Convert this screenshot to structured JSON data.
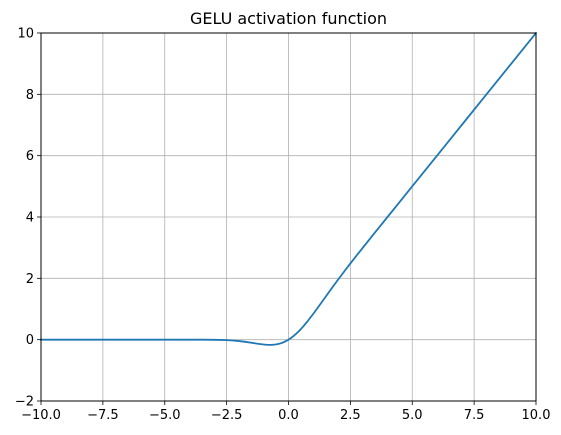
{
  "chart_data": {
    "type": "line",
    "title": "GELU activation function",
    "xlabel": "",
    "ylabel": "",
    "xlim": [
      -10,
      10
    ],
    "ylim": [
      -2,
      10
    ],
    "grid": true,
    "x_ticks": [
      -10,
      -7.5,
      -5,
      -2.5,
      0,
      2.5,
      5,
      7.5,
      10
    ],
    "x_tick_labels": [
      "−10.0",
      "−7.5",
      "−5.0",
      "−2.5",
      "0.0",
      "2.5",
      "5.0",
      "7.5",
      "10.0"
    ],
    "y_ticks": [
      -2,
      0,
      2,
      4,
      6,
      8,
      10
    ],
    "y_tick_labels": [
      "−2",
      "0",
      "2",
      "4",
      "6",
      "8",
      "10"
    ],
    "series": [
      {
        "color": "#1f77b4",
        "x": [
          -10,
          -9,
          -8,
          -7,
          -6,
          -5,
          -4.5,
          -4,
          -3.5,
          -3,
          -2.75,
          -2.5,
          -2.25,
          -2,
          -1.75,
          -1.5,
          -1.25,
          -1,
          -0.9,
          -0.8,
          -0.75,
          -0.7,
          -0.6,
          -0.5,
          -0.4,
          -0.3,
          -0.2,
          -0.1,
          0,
          0.1,
          0.2,
          0.3,
          0.4,
          0.5,
          0.6,
          0.75,
          1,
          1.25,
          1.5,
          1.75,
          2,
          2.25,
          2.5,
          2.75,
          3,
          3.5,
          4,
          4.5,
          5,
          6,
          7,
          8,
          9,
          10
        ],
        "y": [
          0,
          0,
          0,
          0,
          0,
          0,
          0,
          -0.0001,
          -0.0008,
          -0.004,
          -0.0082,
          -0.0155,
          -0.0275,
          -0.0455,
          -0.0702,
          -0.1002,
          -0.132,
          -0.1587,
          -0.1656,
          -0.1695,
          -0.17,
          -0.1695,
          -0.1646,
          -0.1543,
          -0.1379,
          -0.1148,
          -0.0841,
          -0.046,
          0,
          0.054,
          0.1159,
          0.1854,
          0.2621,
          0.3457,
          0.4354,
          0.58,
          0.8413,
          1.118,
          1.3996,
          1.6797,
          1.9545,
          2.2225,
          2.4845,
          2.7418,
          2.996,
          3.4992,
          3.9999,
          4.5,
          5.0,
          6,
          7,
          8,
          9,
          10
        ]
      }
    ]
  }
}
